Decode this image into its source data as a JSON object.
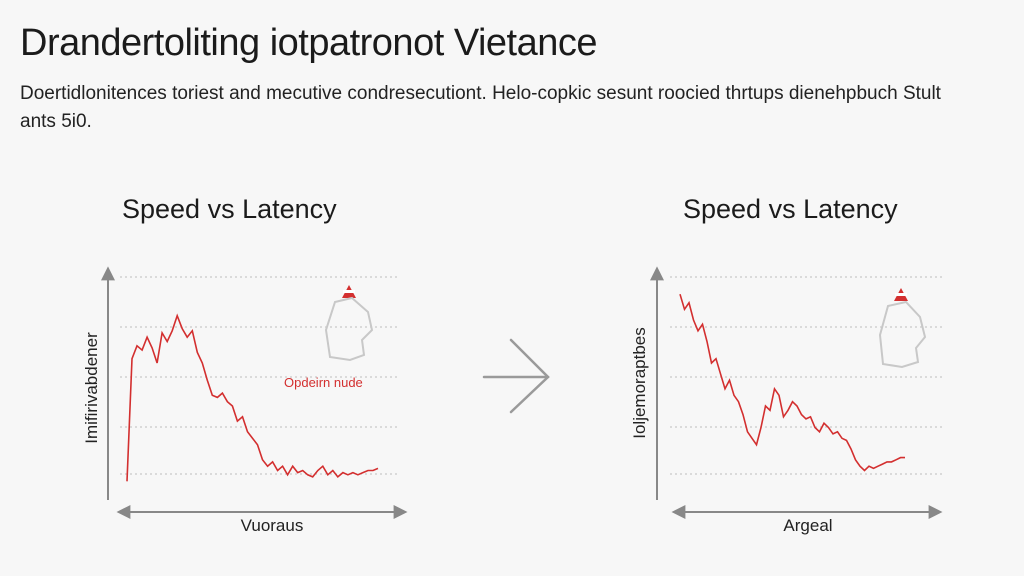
{
  "header": {
    "title": "Drandertoliting iotpatronot Vietance",
    "subtitle": "Doertidlonitences toriest and mecutive condresecutiont. Helo-copkic sesunt roocied thrtups dienehpbuch Stult ants 5i0."
  },
  "chart_data": [
    {
      "type": "line",
      "title": "Speed vs Latency",
      "xlabel": "Vuoraus",
      "ylabel": "Imifirivabdener",
      "annotation": "Opdeirn nude",
      "grid": true,
      "color": "#d32f2f",
      "xlim": [
        0,
        100
      ],
      "ylim": [
        0,
        100
      ],
      "x": [
        0,
        2,
        4,
        6,
        8,
        10,
        12,
        14,
        16,
        18,
        20,
        22,
        24,
        26,
        28,
        30,
        32,
        34,
        36,
        38,
        40,
        42,
        44,
        46,
        48,
        50,
        52,
        54,
        56,
        58,
        60,
        62,
        64,
        66,
        68,
        70,
        72,
        74,
        76,
        78,
        80,
        82,
        84,
        86,
        88,
        90,
        92,
        94,
        96,
        98,
        100
      ],
      "y": [
        5,
        62,
        68,
        66,
        72,
        67,
        60,
        74,
        70,
        75,
        82,
        76,
        72,
        75,
        65,
        60,
        52,
        45,
        44,
        46,
        42,
        40,
        33,
        35,
        28,
        25,
        22,
        15,
        12,
        14,
        10,
        12,
        8,
        12,
        9,
        10,
        8,
        7,
        10,
        12,
        8,
        10,
        7,
        9,
        8,
        9,
        8,
        9,
        10,
        10,
        11
      ]
    },
    {
      "type": "line",
      "title": "Speed vs Latency",
      "xlabel": "Argeal",
      "ylabel": "Ioljemoraptbes",
      "grid": true,
      "color": "#d32f2f",
      "xlim": [
        0,
        100
      ],
      "ylim": [
        0,
        100
      ],
      "x": [
        0,
        2,
        4,
        6,
        8,
        10,
        12,
        14,
        16,
        18,
        20,
        22,
        24,
        26,
        28,
        30,
        32,
        34,
        36,
        38,
        40,
        42,
        44,
        46,
        48,
        50,
        52,
        54,
        56,
        58,
        60,
        62,
        64,
        66,
        68,
        70,
        72,
        74,
        76,
        78,
        80,
        82,
        84,
        86,
        88,
        90,
        92,
        94,
        96,
        98,
        100
      ],
      "y": [
        92,
        85,
        88,
        80,
        75,
        78,
        70,
        60,
        62,
        55,
        48,
        52,
        45,
        42,
        36,
        28,
        25,
        22,
        30,
        40,
        38,
        48,
        45,
        35,
        38,
        42,
        40,
        36,
        34,
        35,
        30,
        28,
        32,
        30,
        27,
        28,
        25,
        24,
        20,
        15,
        12,
        10,
        12,
        11,
        12,
        13,
        14,
        14,
        15,
        16,
        16
      ]
    }
  ]
}
